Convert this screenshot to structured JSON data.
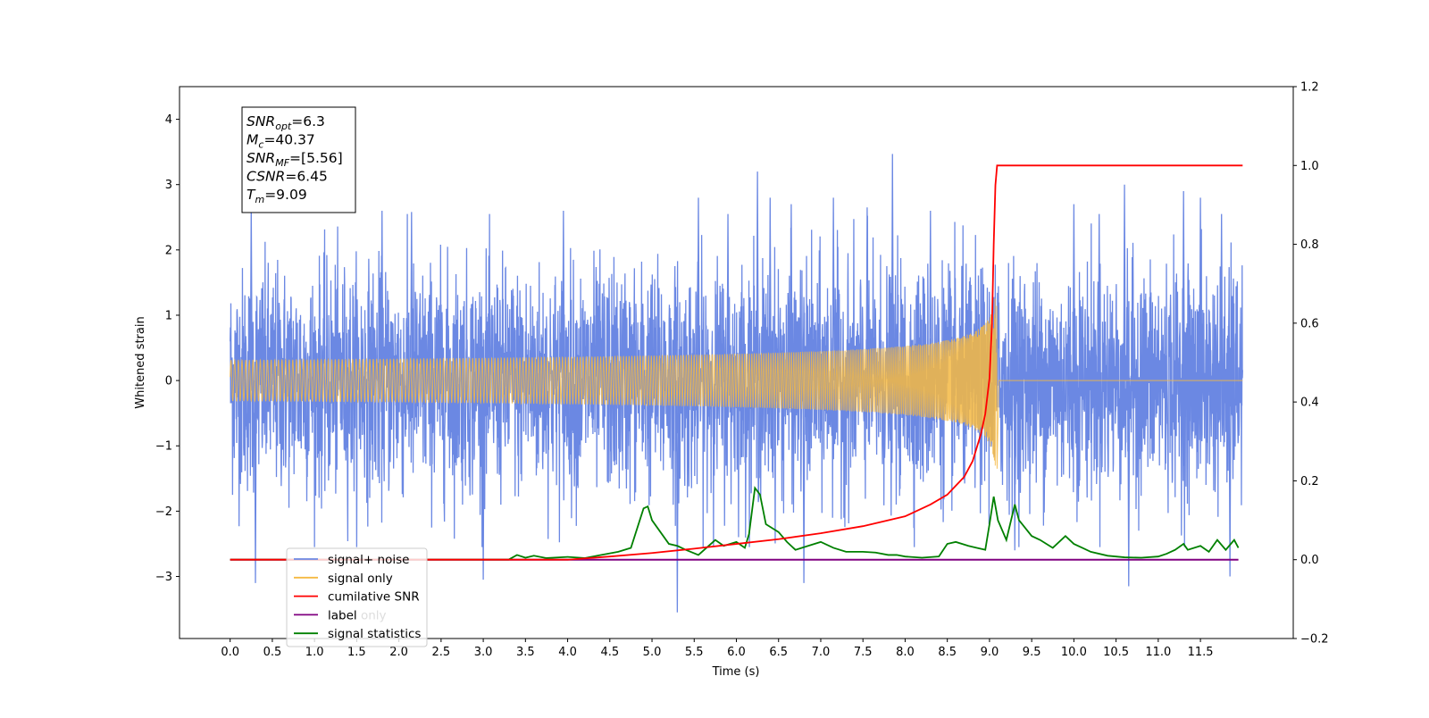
{
  "chart_data": {
    "type": "line",
    "xlabel": "Time (s)",
    "ylabel": "Whitened strain",
    "xlim": [
      -0.6,
      12.6
    ],
    "ylim": [
      -3.95,
      4.5
    ],
    "y2lim": [
      -0.2,
      1.2
    ],
    "x_ticks": [
      "0.0",
      "0.5",
      "1.0",
      "1.5",
      "2.0",
      "2.5",
      "3.0",
      "3.5",
      "4.0",
      "4.5",
      "5.0",
      "5.5",
      "6.0",
      "6.5",
      "7.0",
      "7.5",
      "8.0",
      "8.5",
      "9.0",
      "9.5",
      "10.0",
      "10.5",
      "11.0",
      "11.5"
    ],
    "x_tick_values": [
      0,
      0.5,
      1,
      1.5,
      2,
      2.5,
      3,
      3.5,
      4,
      4.5,
      5,
      5.5,
      6,
      6.5,
      7,
      7.5,
      8,
      8.5,
      9,
      9.5,
      10,
      10.5,
      11,
      11.5
    ],
    "y_ticks": [
      "−3",
      "−2",
      "−1",
      "0",
      "1",
      "2",
      "3",
      "4"
    ],
    "y_tick_values": [
      -3,
      -2,
      -1,
      0,
      1,
      2,
      3,
      4
    ],
    "y2_ticks": [
      "−0.2",
      "0.0",
      "0.2",
      "0.4",
      "0.6",
      "0.8",
      "1.0",
      "1.2"
    ],
    "y2_tick_values": [
      -0.2,
      0,
      0.2,
      0.4,
      0.6,
      0.8,
      1.0,
      1.2
    ],
    "grid": false,
    "legend_position": "lower-left",
    "series": [
      {
        "name": "signal+ noise",
        "axis": "left",
        "color": "#6b88e3",
        "style": "noise",
        "x_range": [
          0,
          12.0
        ],
        "sigma": 0.85,
        "peak_values": [
          [
            0.3,
            -3.1
          ],
          [
            0.25,
            2.7
          ],
          [
            1.8,
            2.6
          ],
          [
            2.15,
            2.58
          ],
          [
            3.0,
            -3.05
          ],
          [
            3.95,
            2.6
          ],
          [
            5.3,
            -3.55
          ],
          [
            5.55,
            2.8
          ],
          [
            5.9,
            2.55
          ],
          [
            6.25,
            3.2
          ],
          [
            6.4,
            2.8
          ],
          [
            6.65,
            2.7
          ],
          [
            6.8,
            -3.1
          ],
          [
            7.15,
            2.8
          ],
          [
            7.55,
            2.65
          ],
          [
            7.85,
            3.47
          ],
          [
            8.3,
            2.6
          ],
          [
            9.3,
            -2.6
          ],
          [
            10.0,
            2.7
          ],
          [
            10.3,
            2.55
          ],
          [
            10.6,
            3.0
          ],
          [
            10.65,
            -3.15
          ],
          [
            11.3,
            2.9
          ],
          [
            11.5,
            2.8
          ],
          [
            11.75,
            2.55
          ],
          [
            11.85,
            -3.0
          ]
        ]
      },
      {
        "name": "signal only",
        "axis": "left",
        "color": "#f5b942",
        "style": "chirp",
        "merger_time": 9.09,
        "merger_amplitude": 1.35
      },
      {
        "name": "cumilative SNR",
        "axis": "right",
        "color": "#ff0000",
        "points": [
          [
            0,
            0
          ],
          [
            4.0,
            0
          ],
          [
            4.5,
            0.008
          ],
          [
            5.0,
            0.017
          ],
          [
            5.5,
            0.028
          ],
          [
            6.0,
            0.04
          ],
          [
            6.5,
            0.052
          ],
          [
            7.0,
            0.067
          ],
          [
            7.5,
            0.085
          ],
          [
            8.0,
            0.11
          ],
          [
            8.3,
            0.14
          ],
          [
            8.5,
            0.165
          ],
          [
            8.7,
            0.21
          ],
          [
            8.8,
            0.25
          ],
          [
            8.9,
            0.32
          ],
          [
            8.95,
            0.37
          ],
          [
            9.0,
            0.46
          ],
          [
            9.03,
            0.6
          ],
          [
            9.05,
            0.8
          ],
          [
            9.07,
            0.95
          ],
          [
            9.09,
            1.0
          ],
          [
            12.0,
            1.0
          ]
        ]
      },
      {
        "name": "label",
        "axis": "right",
        "color": "#800080",
        "points": [
          [
            0,
            0
          ],
          [
            11.95,
            0
          ]
        ]
      },
      {
        "name": "label only",
        "axis": "right",
        "color": "#800080",
        "hidden_in_plot": true,
        "points": []
      },
      {
        "name": "signal statistics",
        "axis": "right",
        "color": "#008000",
        "points": [
          [
            0,
            0.0
          ],
          [
            3.3,
            0.0
          ],
          [
            3.4,
            0.012
          ],
          [
            3.5,
            0.005
          ],
          [
            3.6,
            0.01
          ],
          [
            3.75,
            0.004
          ],
          [
            4.0,
            0.007
          ],
          [
            4.2,
            0.004
          ],
          [
            4.4,
            0.012
          ],
          [
            4.6,
            0.02
          ],
          [
            4.75,
            0.03
          ],
          [
            4.9,
            0.13
          ],
          [
            4.95,
            0.135
          ],
          [
            5.0,
            0.1
          ],
          [
            5.1,
            0.07
          ],
          [
            5.2,
            0.04
          ],
          [
            5.3,
            0.035
          ],
          [
            5.4,
            0.025
          ],
          [
            5.55,
            0.012
          ],
          [
            5.75,
            0.05
          ],
          [
            5.85,
            0.035
          ],
          [
            6.0,
            0.045
          ],
          [
            6.1,
            0.03
          ],
          [
            6.15,
            0.065
          ],
          [
            6.22,
            0.182
          ],
          [
            6.28,
            0.165
          ],
          [
            6.35,
            0.09
          ],
          [
            6.5,
            0.07
          ],
          [
            6.6,
            0.045
          ],
          [
            6.7,
            0.025
          ],
          [
            6.85,
            0.035
          ],
          [
            7.0,
            0.045
          ],
          [
            7.15,
            0.03
          ],
          [
            7.3,
            0.02
          ],
          [
            7.5,
            0.02
          ],
          [
            7.65,
            0.018
          ],
          [
            7.8,
            0.012
          ],
          [
            7.9,
            0.012
          ],
          [
            8.0,
            0.008
          ],
          [
            8.2,
            0.005
          ],
          [
            8.4,
            0.008
          ],
          [
            8.5,
            0.04
          ],
          [
            8.6,
            0.045
          ],
          [
            8.75,
            0.035
          ],
          [
            8.85,
            0.03
          ],
          [
            8.95,
            0.025
          ],
          [
            9.0,
            0.09
          ],
          [
            9.05,
            0.16
          ],
          [
            9.1,
            0.1
          ],
          [
            9.2,
            0.05
          ],
          [
            9.3,
            0.14
          ],
          [
            9.35,
            0.1
          ],
          [
            9.5,
            0.06
          ],
          [
            9.6,
            0.05
          ],
          [
            9.75,
            0.03
          ],
          [
            9.9,
            0.06
          ],
          [
            10.0,
            0.04
          ],
          [
            10.1,
            0.03
          ],
          [
            10.2,
            0.02
          ],
          [
            10.4,
            0.01
          ],
          [
            10.6,
            0.006
          ],
          [
            10.8,
            0.005
          ],
          [
            11.0,
            0.008
          ],
          [
            11.1,
            0.015
          ],
          [
            11.2,
            0.025
          ],
          [
            11.3,
            0.04
          ],
          [
            11.35,
            0.025
          ],
          [
            11.5,
            0.035
          ],
          [
            11.6,
            0.02
          ],
          [
            11.7,
            0.05
          ],
          [
            11.8,
            0.025
          ],
          [
            11.9,
            0.05
          ],
          [
            11.95,
            0.03
          ]
        ]
      }
    ],
    "info_box": {
      "lines": [
        {
          "main": "SNR",
          "sub": "opt",
          "rest": "=6.3"
        },
        {
          "main": "M",
          "sub": "c",
          "rest": "=40.37"
        },
        {
          "main": "SNR",
          "sub": "MF",
          "rest": "=[5.56]"
        },
        {
          "main": "CSNR",
          "sub": "",
          "rest": "=6.45"
        },
        {
          "main": "T",
          "sub": "m",
          "rest": "=9.09"
        }
      ]
    },
    "legend": [
      {
        "label": "signal+ noise",
        "color": "#6b88e3"
      },
      {
        "label": "signal only",
        "color": "#f5b942"
      },
      {
        "label": "cumilative SNR",
        "color": "#ff0000"
      },
      {
        "label": "label",
        "color": "#800080",
        "overlay_label": "label only",
        "overlay_color": "#dddddd"
      },
      {
        "label": "signal statistics",
        "color": "#008000"
      }
    ]
  }
}
